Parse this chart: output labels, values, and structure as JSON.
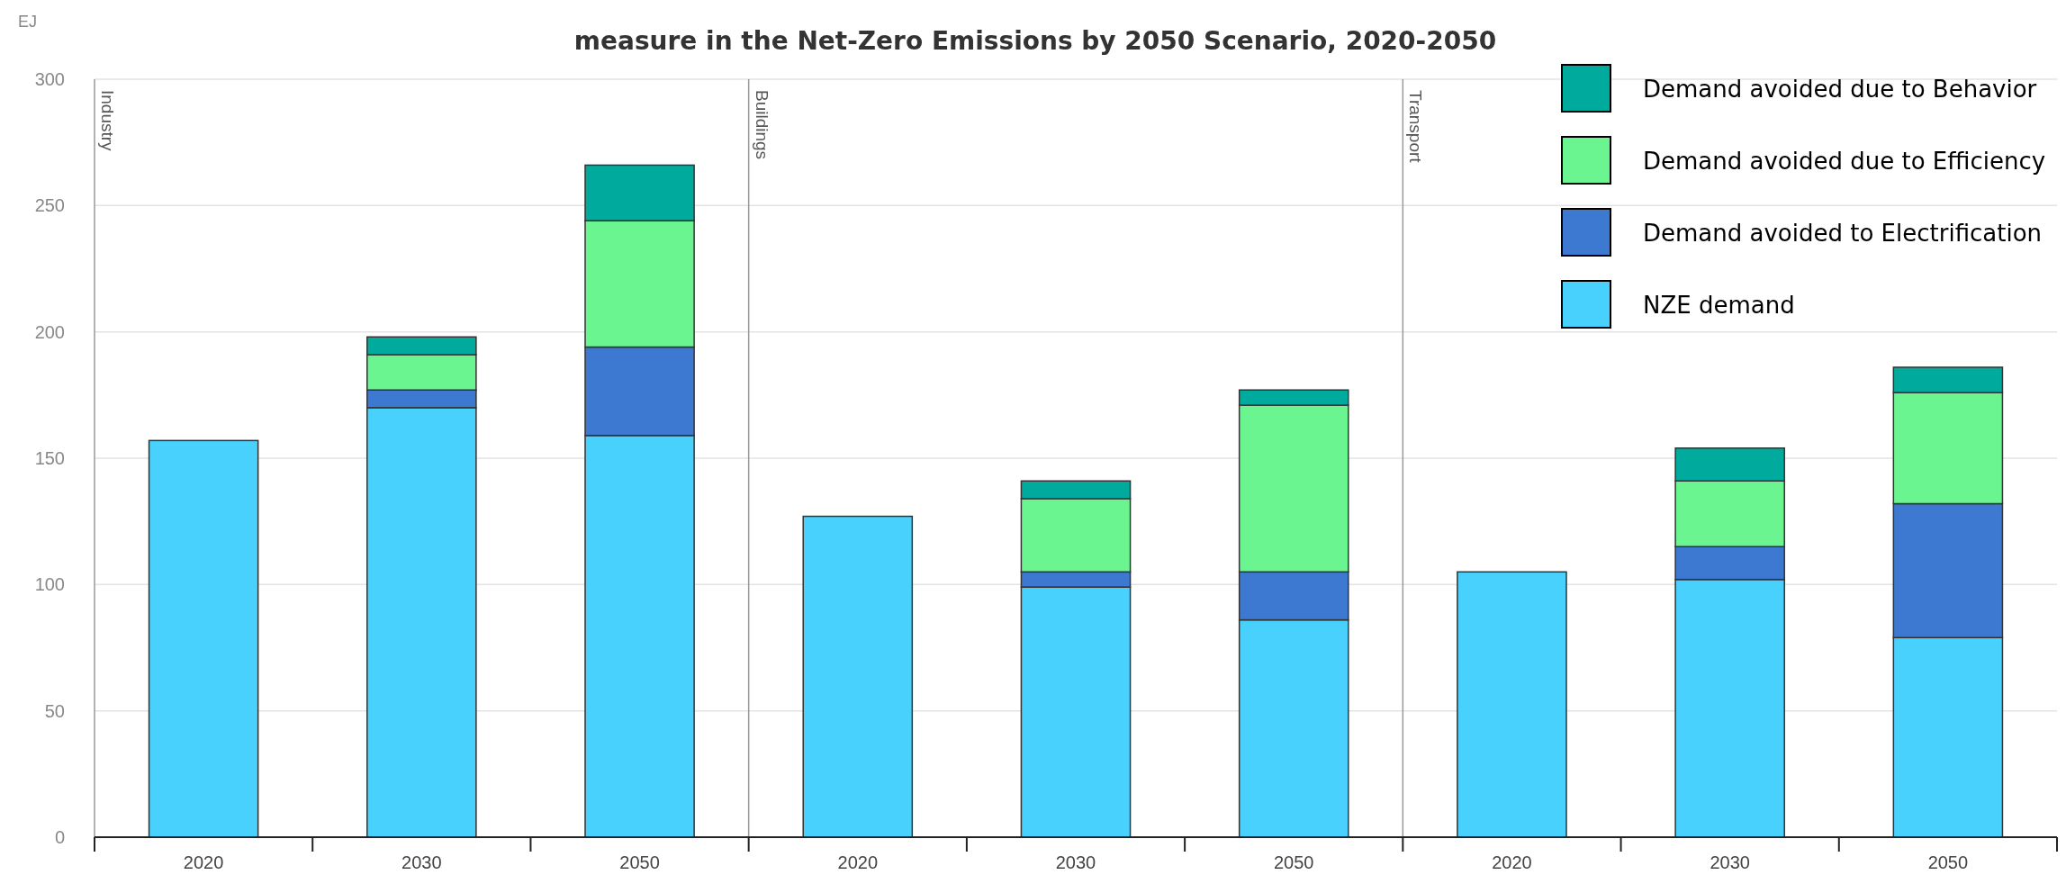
{
  "chart_data": {
    "type": "bar",
    "title": "measure in the Net-Zero Emissions by 2050 Scenario, 2020-2050",
    "ylabel": "EJ",
    "categories": [
      "2020",
      "2030",
      "2050",
      "2020",
      "2030",
      "2050",
      "2020",
      "2030",
      "2050"
    ],
    "stacked": true,
    "ylim": [
      0,
      300
    ],
    "yticks": [
      0,
      50,
      100,
      150,
      200,
      250,
      300
    ],
    "grid": "y",
    "legend": "top right",
    "annotations": [
      "Industry",
      "Buildings",
      "Transport"
    ],
    "series": [
      {
        "name": "NZE demand",
        "color": "#48d1fd",
        "values": [
          157,
          170,
          159,
          127,
          99,
          86,
          105,
          102,
          79
        ]
      },
      {
        "name": "Demand avoided to Electrification",
        "color": "#3d78d1",
        "values": [
          null,
          7,
          35,
          null,
          6,
          19,
          null,
          13,
          53
        ]
      },
      {
        "name": "Demand avoided due to Efficiency",
        "color": "#6af590",
        "values": [
          null,
          14,
          50,
          null,
          29,
          66,
          null,
          26,
          44
        ]
      },
      {
        "name": "Demand avoided due to Behavior",
        "color": "#00ab9e",
        "values": [
          null,
          7,
          22,
          null,
          7,
          6,
          null,
          13,
          10
        ]
      }
    ]
  }
}
